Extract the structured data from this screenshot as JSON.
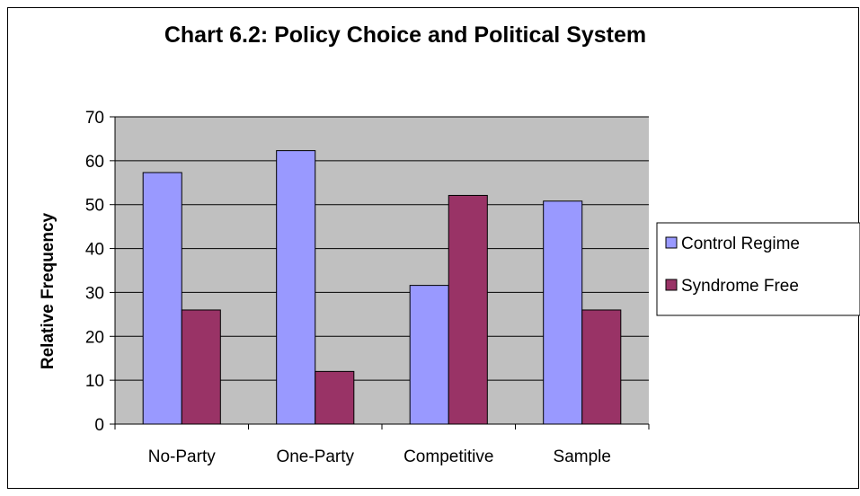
{
  "chart_data": {
    "type": "bar",
    "title": "Chart 6.2: Policy Choice and Political System",
    "xlabel": "",
    "ylabel": "Relative Frequency",
    "categories": [
      "No-Party",
      "One-Party",
      "Competitive",
      "Sample"
    ],
    "series": [
      {
        "name": "Control Regime",
        "values": [
          57.3,
          62.3,
          31.6,
          50.8
        ],
        "color": "#9999ff"
      },
      {
        "name": "Syndrome Free",
        "values": [
          26.0,
          12.0,
          52.1,
          26.0
        ],
        "color": "#993366"
      }
    ],
    "ylim": [
      0,
      70
    ],
    "yticks": [
      0,
      10,
      20,
      30,
      40,
      50,
      60,
      70
    ],
    "grid": true,
    "plot_background": "#c0c0c0",
    "legend_position": "right"
  }
}
